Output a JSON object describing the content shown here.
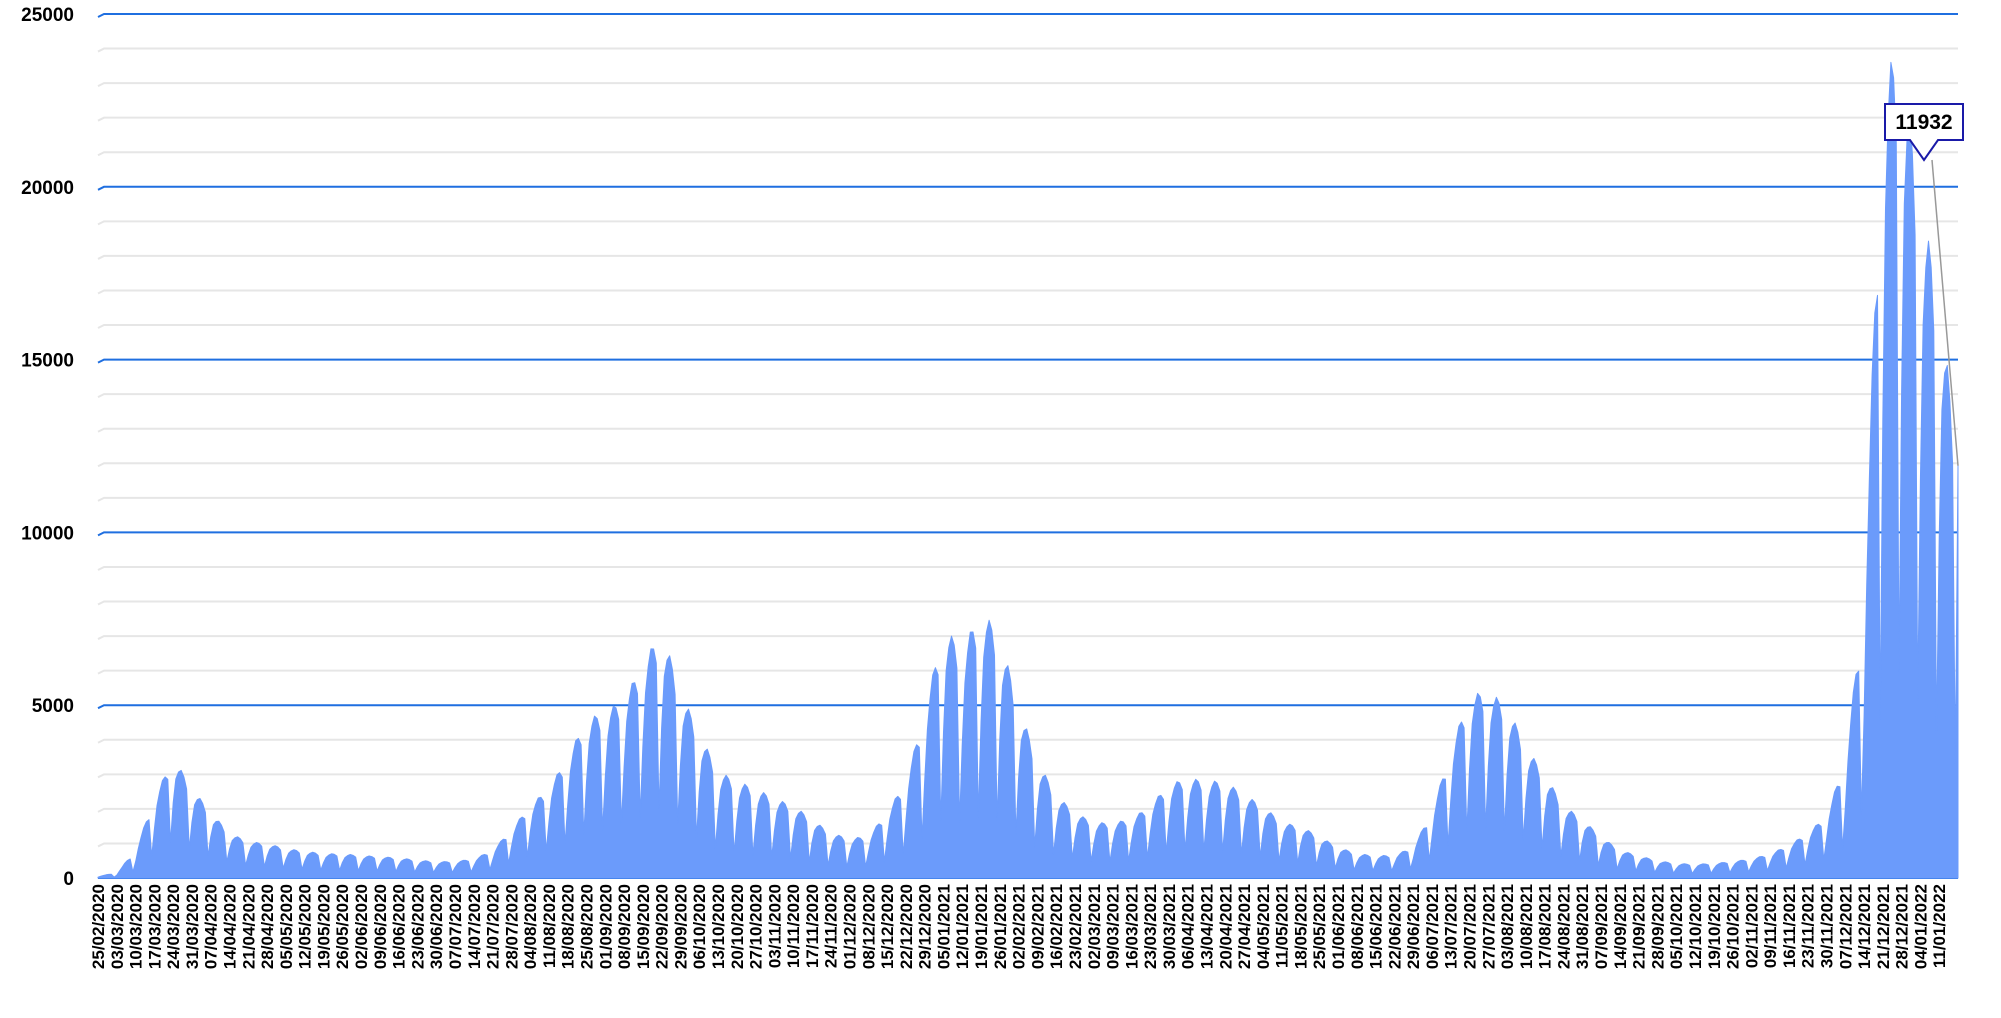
{
  "chart_data": {
    "type": "area",
    "title": "",
    "xlabel": "",
    "ylabel": "",
    "ylim": [
      0,
      25000
    ],
    "y_ticks": [
      0,
      5000,
      10000,
      15000,
      20000,
      25000
    ],
    "grid": "major and minor horizontal gridlines",
    "x_start": "25/02/2020",
    "x_end": "18/01/2022",
    "x_ticks": [
      "25/02/2020",
      "03/03/2020",
      "10/03/2020",
      "17/03/2020",
      "24/03/2020",
      "31/03/2020",
      "07/04/2020",
      "14/04/2020",
      "21/04/2020",
      "28/04/2020",
      "05/05/2020",
      "12/05/2020",
      "19/05/2020",
      "26/05/2020",
      "02/06/2020",
      "09/06/2020",
      "16/06/2020",
      "23/06/2020",
      "30/06/2020",
      "07/07/2020",
      "14/07/2020",
      "21/07/2020",
      "28/07/2020",
      "04/08/2020",
      "11/08/2020",
      "18/08/2020",
      "25/08/2020",
      "01/09/2020",
      "08/09/2020",
      "15/09/2020",
      "22/09/2020",
      "29/09/2020",
      "06/10/2020",
      "13/10/2020",
      "20/10/2020",
      "27/10/2020",
      "03/11/2020",
      "10/11/2020",
      "17/11/2020",
      "24/11/2020",
      "01/12/2020",
      "08/12/2020",
      "15/12/2020",
      "22/12/2020",
      "29/12/2020",
      "05/01/2021",
      "12/01/2021",
      "19/01/2021",
      "26/01/2021",
      "02/02/2021",
      "09/02/2021",
      "16/02/2021",
      "23/02/2021",
      "02/03/2021",
      "09/03/2021",
      "16/03/2021",
      "23/03/2021",
      "30/03/2021",
      "06/04/2021",
      "13/04/2021",
      "20/04/2021",
      "27/04/2021",
      "04/05/2021",
      "11/05/2021",
      "18/05/2021",
      "25/05/2021",
      "01/06/2021",
      "08/06/2021",
      "15/06/2021",
      "22/06/2021",
      "29/06/2021",
      "06/07/2021",
      "13/07/2021",
      "20/07/2021",
      "27/07/2021",
      "03/08/2021",
      "10/08/2021",
      "17/08/2021",
      "24/08/2021",
      "31/08/2021",
      "07/09/2021",
      "14/09/2021",
      "21/09/2021",
      "28/09/2021",
      "05/10/2021",
      "12/10/2021",
      "19/10/2021",
      "26/10/2021",
      "02/11/2021",
      "09/11/2021",
      "16/11/2021",
      "23/11/2021",
      "30/11/2021",
      "07/12/2021",
      "14/12/2021",
      "21/12/2021",
      "28/12/2021",
      "04/01/2022",
      "11/01/2022"
    ],
    "weekly_high": [
      [
        "25/02/2020",
        50
      ],
      [
        "03/03/2020",
        150
      ],
      [
        "10/03/2020",
        800
      ],
      [
        "17/03/2020",
        2300
      ],
      [
        "24/03/2020",
        3500
      ],
      [
        "31/03/2020",
        2600
      ],
      [
        "07/04/2020",
        1900
      ],
      [
        "14/04/2020",
        1300
      ],
      [
        "21/04/2020",
        1050
      ],
      [
        "28/04/2020",
        1000
      ],
      [
        "05/05/2020",
        850
      ],
      [
        "12/05/2020",
        780
      ],
      [
        "19/05/2020",
        700
      ],
      [
        "26/05/2020",
        700
      ],
      [
        "02/06/2020",
        650
      ],
      [
        "09/06/2020",
        620
      ],
      [
        "16/06/2020",
        580
      ],
      [
        "23/06/2020",
        520
      ],
      [
        "30/06/2020",
        470
      ],
      [
        "07/07/2020",
        480
      ],
      [
        "14/07/2020",
        550
      ],
      [
        "21/07/2020",
        800
      ],
      [
        "28/07/2020",
        1400
      ],
      [
        "04/08/2020",
        2100
      ],
      [
        "11/08/2020",
        2600
      ],
      [
        "18/08/2020",
        3500
      ],
      [
        "25/08/2020",
        4600
      ],
      [
        "01/09/2020",
        4800
      ],
      [
        "08/09/2020",
        5200
      ],
      [
        "15/09/2020",
        6200
      ],
      [
        "22/09/2020",
        7200
      ],
      [
        "29/09/2020",
        5400
      ],
      [
        "06/10/2020",
        4200
      ],
      [
        "13/10/2020",
        3100
      ],
      [
        "20/10/2020",
        2800
      ],
      [
        "27/10/2020",
        2600
      ],
      [
        "03/11/2020",
        2300
      ],
      [
        "10/11/2020",
        2100
      ],
      [
        "17/11/2020",
        1700
      ],
      [
        "24/11/2020",
        1300
      ],
      [
        "01/12/2020",
        1150
      ],
      [
        "08/12/2020",
        1200
      ],
      [
        "15/12/2020",
        1900
      ],
      [
        "22/12/2020",
        2800
      ],
      [
        "29/12/2020",
        4800
      ],
      [
        "05/01/2021",
        7300
      ],
      [
        "12/01/2021",
        6600
      ],
      [
        "19/01/2021",
        7800
      ],
      [
        "26/01/2021",
        7000
      ],
      [
        "02/02/2021",
        5000
      ],
      [
        "09/02/2021",
        3400
      ],
      [
        "16/02/2021",
        2400
      ],
      [
        "23/02/2021",
        1900
      ],
      [
        "02/03/2021",
        1600
      ],
      [
        "09/03/2021",
        1600
      ],
      [
        "16/03/2021",
        1700
      ],
      [
        "23/03/2021",
        2100
      ],
      [
        "30/03/2021",
        2700
      ],
      [
        "06/04/2021",
        2900
      ],
      [
        "13/04/2021",
        2800
      ],
      [
        "20/04/2021",
        2800
      ],
      [
        "27/04/2021",
        2400
      ],
      [
        "04/05/2021",
        2100
      ],
      [
        "11/05/2021",
        1600
      ],
      [
        "18/05/2021",
        1500
      ],
      [
        "25/05/2021",
        1200
      ],
      [
        "01/06/2021",
        900
      ],
      [
        "08/06/2021",
        700
      ],
      [
        "15/06/2021",
        650
      ],
      [
        "22/06/2021",
        650
      ],
      [
        "29/06/2021",
        900
      ],
      [
        "06/07/2021",
        1900
      ],
      [
        "13/07/2021",
        3700
      ],
      [
        "20/07/2021",
        5300
      ],
      [
        "27/07/2021",
        5400
      ],
      [
        "03/08/2021",
        5000
      ],
      [
        "10/08/2021",
        3800
      ],
      [
        "17/08/2021",
        3000
      ],
      [
        "24/08/2021",
        2100
      ],
      [
        "31/08/2021",
        1700
      ],
      [
        "07/09/2021",
        1200
      ],
      [
        "14/09/2021",
        800
      ],
      [
        "21/09/2021",
        650
      ],
      [
        "28/09/2021",
        500
      ],
      [
        "05/10/2021",
        420
      ],
      [
        "12/10/2021",
        400
      ],
      [
        "19/10/2021",
        420
      ],
      [
        "26/10/2021",
        480
      ],
      [
        "02/11/2021",
        550
      ],
      [
        "09/11/2021",
        700
      ],
      [
        "16/11/2021",
        950
      ],
      [
        "23/11/2021",
        1300
      ],
      [
        "30/11/2021",
        1800
      ],
      [
        "07/12/2021",
        3400
      ],
      [
        "14/12/2021",
        8000
      ],
      [
        "21/12/2021",
        23300
      ],
      [
        "28/12/2021",
        24000
      ],
      [
        "04/01/2022",
        19500
      ],
      [
        "11/01/2022",
        17000
      ],
      [
        "18/01/2022",
        11932
      ]
    ],
    "weekly_low": [
      [
        "25/02/2020",
        0
      ],
      [
        "03/03/2020",
        30
      ],
      [
        "10/03/2020",
        200
      ],
      [
        "17/03/2020",
        700
      ],
      [
        "24/03/2020",
        1100
      ],
      [
        "31/03/2020",
        800
      ],
      [
        "07/04/2020",
        600
      ],
      [
        "14/04/2020",
        450
      ],
      [
        "21/04/2020",
        350
      ],
      [
        "28/04/2020",
        330
      ],
      [
        "05/05/2020",
        280
      ],
      [
        "12/05/2020",
        250
      ],
      [
        "19/05/2020",
        230
      ],
      [
        "26/05/2020",
        220
      ],
      [
        "02/06/2020",
        210
      ],
      [
        "09/06/2020",
        200
      ],
      [
        "16/06/2020",
        190
      ],
      [
        "23/06/2020",
        170
      ],
      [
        "30/06/2020",
        160
      ],
      [
        "07/07/2020",
        160
      ],
      [
        "14/07/2020",
        180
      ],
      [
        "21/07/2020",
        260
      ],
      [
        "28/07/2020",
        450
      ],
      [
        "04/08/2020",
        650
      ],
      [
        "11/08/2020",
        800
      ],
      [
        "18/08/2020",
        1000
      ],
      [
        "25/08/2020",
        1300
      ],
      [
        "01/09/2020",
        1400
      ],
      [
        "08/09/2020",
        1600
      ],
      [
        "15/09/2020",
        1800
      ],
      [
        "22/09/2020",
        2000
      ],
      [
        "29/09/2020",
        1500
      ],
      [
        "06/10/2020",
        1100
      ],
      [
        "13/10/2020",
        800
      ],
      [
        "20/10/2020",
        700
      ],
      [
        "27/10/2020",
        650
      ],
      [
        "03/11/2020",
        600
      ],
      [
        "10/11/2020",
        550
      ],
      [
        "17/11/2020",
        450
      ],
      [
        "24/11/2020",
        350
      ],
      [
        "01/12/2020",
        320
      ],
      [
        "08/12/2020",
        330
      ],
      [
        "15/12/2020",
        500
      ],
      [
        "22/12/2020",
        700
      ],
      [
        "29/12/2020",
        1200
      ],
      [
        "05/01/2021",
        1700
      ],
      [
        "12/01/2021",
        1600
      ],
      [
        "19/01/2021",
        1800
      ],
      [
        "26/01/2021",
        1600
      ],
      [
        "02/02/2021",
        1200
      ],
      [
        "09/02/2021",
        850
      ],
      [
        "16/02/2021",
        650
      ],
      [
        "23/02/2021",
        550
      ],
      [
        "02/03/2021",
        480
      ],
      [
        "09/03/2021",
        470
      ],
      [
        "16/03/2021",
        500
      ],
      [
        "23/03/2021",
        600
      ],
      [
        "30/03/2021",
        750
      ],
      [
        "06/04/2021",
        800
      ],
      [
        "13/04/2021",
        780
      ],
      [
        "20/04/2021",
        760
      ],
      [
        "27/04/2021",
        680
      ],
      [
        "04/05/2021",
        600
      ],
      [
        "11/05/2021",
        480
      ],
      [
        "18/05/2021",
        430
      ],
      [
        "25/05/2021",
        350
      ],
      [
        "01/06/2021",
        280
      ],
      [
        "08/06/2021",
        230
      ],
      [
        "15/06/2021",
        210
      ],
      [
        "22/06/2021",
        210
      ],
      [
        "29/06/2021",
        280
      ],
      [
        "06/07/2021",
        550
      ],
      [
        "13/07/2021",
        1000
      ],
      [
        "20/07/2021",
        1400
      ],
      [
        "27/07/2021",
        1450
      ],
      [
        "03/08/2021",
        1350
      ],
      [
        "10/08/2021",
        1050
      ],
      [
        "17/08/2021",
        820
      ],
      [
        "24/08/2021",
        600
      ],
      [
        "31/08/2021",
        480
      ],
      [
        "07/09/2021",
        350
      ],
      [
        "14/09/2021",
        250
      ],
      [
        "21/09/2021",
        200
      ],
      [
        "28/09/2021",
        160
      ],
      [
        "05/10/2021",
        140
      ],
      [
        "12/10/2021",
        130
      ],
      [
        "19/10/2021",
        140
      ],
      [
        "26/10/2021",
        160
      ],
      [
        "02/11/2021",
        180
      ],
      [
        "09/11/2021",
        220
      ],
      [
        "16/11/2021",
        300
      ],
      [
        "23/11/2021",
        400
      ],
      [
        "30/11/2021",
        550
      ],
      [
        "07/12/2021",
        900
      ],
      [
        "14/12/2021",
        2000
      ],
      [
        "21/12/2021",
        5000
      ],
      [
        "28/12/2021",
        6000
      ],
      [
        "04/01/2022",
        5000
      ],
      [
        "11/01/2022",
        4000
      ],
      [
        "18/01/2022",
        3200
      ]
    ],
    "callout": {
      "date": "18/01/2022",
      "value": 11932,
      "label": "11932"
    },
    "colors": {
      "area": "#6b9bfb",
      "major_grid": "#1f6fe0",
      "minor_grid": "#e6e6e6",
      "callout_border": "#1a1aa8",
      "text": "#000000"
    }
  }
}
